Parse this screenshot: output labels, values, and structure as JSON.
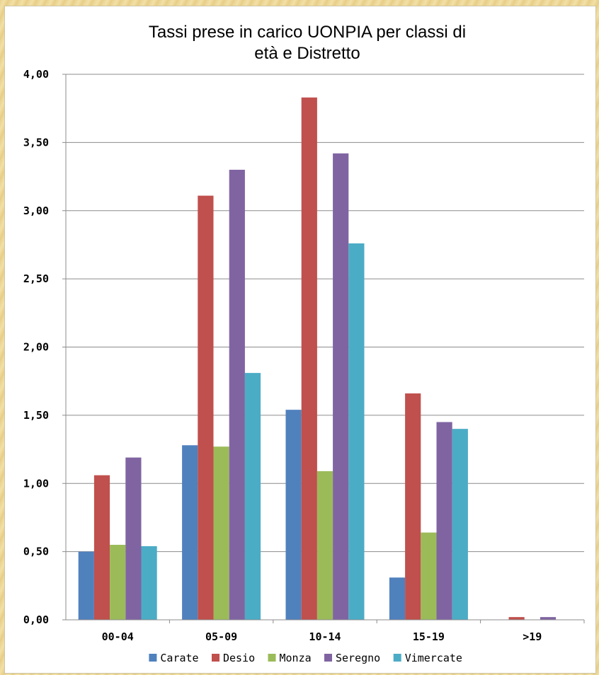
{
  "chart_data": {
    "type": "bar",
    "title_lines": [
      "Tassi  prese in carico UONPIA per classi di",
      "età e Distretto"
    ],
    "categories": [
      "00-04",
      "05-09",
      "10-14",
      "15-19",
      ">19"
    ],
    "ylim": [
      0,
      4
    ],
    "y_ticks": [
      "0,00",
      "0,50",
      "1,00",
      "1,50",
      "2,00",
      "2,50",
      "3,00",
      "3,50",
      "4,00"
    ],
    "y_tick_values": [
      0,
      0.5,
      1,
      1.5,
      2,
      2.5,
      3,
      3.5,
      4
    ],
    "grid": true,
    "legend_position": "bottom",
    "series": [
      {
        "name": "Carate",
        "color": "#4f81bd",
        "values": [
          0.5,
          1.28,
          1.54,
          0.31,
          0.0
        ]
      },
      {
        "name": "Desio",
        "color": "#c0504d",
        "values": [
          1.06,
          3.11,
          3.83,
          1.66,
          0.02
        ]
      },
      {
        "name": "Monza",
        "color": "#9bbb59",
        "values": [
          0.55,
          1.27,
          1.09,
          0.64,
          0.0
        ]
      },
      {
        "name": "Seregno",
        "color": "#8064a2",
        "values": [
          1.19,
          3.3,
          3.42,
          1.45,
          0.02
        ]
      },
      {
        "name": "Vimercate",
        "color": "#4bacc6",
        "values": [
          0.54,
          1.81,
          2.76,
          1.4,
          0.0
        ]
      }
    ]
  }
}
